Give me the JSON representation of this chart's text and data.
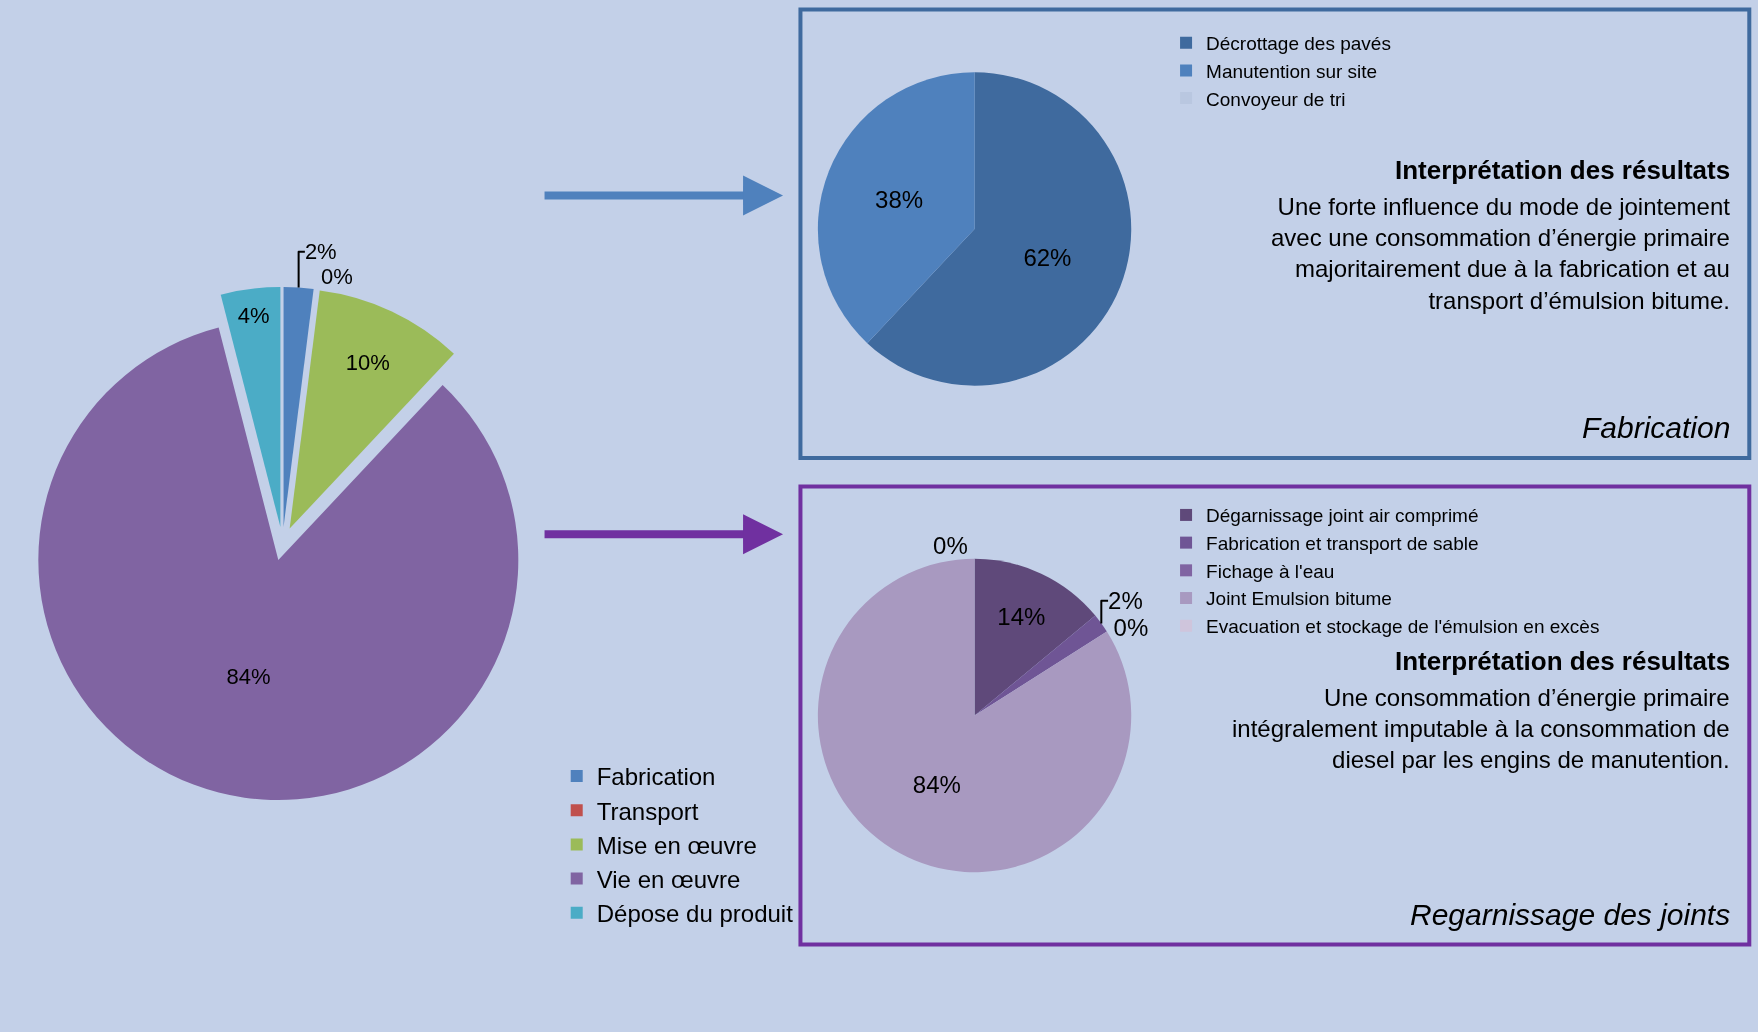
{
  "chart_data": [
    {
      "type": "pie",
      "categories": [
        "Fabrication",
        "Transport",
        "Mise en œuvre",
        "Vie en œuvre",
        "Dépose du produit"
      ],
      "values": [
        2,
        0,
        10,
        84,
        4
      ],
      "colors": [
        "#4f81bd",
        "#c0504d",
        "#9bbb59",
        "#8064a2",
        "#4bacc6"
      ],
      "value_labels": [
        "2%",
        "0%",
        "10%",
        "84%",
        "4%"
      ],
      "legend": "bottom right"
    },
    {
      "type": "pie",
      "title": "Fabrication",
      "categories": [
        "Décrottage des pavés",
        "Manutention sur site",
        "Convoyeur de tri"
      ],
      "values": [
        62,
        38,
        0
      ],
      "colors": [
        "#3f6a9e",
        "#4f81bd",
        "#b9c7e0"
      ],
      "value_labels": [
        "62%",
        "38%",
        null
      ],
      "legend": "top right",
      "annotations": [
        "Interprétation des résultats",
        "Une forte influence du mode de jointement avec une consommation d’énergie primaire majoritairement due à la fabrication et au transport d’émulsion bitume."
      ]
    },
    {
      "type": "pie",
      "title": "Regarnissage des joints",
      "categories": [
        "Dégarnissage joint air comprimé",
        "Fabrication et transport de sable",
        "Fichage à l'eau",
        "Joint Emulsion bitume",
        "Evacuation et stockage de l'émulsion en excès"
      ],
      "values": [
        14,
        2,
        0,
        84,
        0
      ],
      "colors": [
        "#5f497a",
        "#6f5595",
        "#8064a2",
        "#a899c0",
        "#cfc5dc"
      ],
      "value_labels": [
        "14%",
        "2%",
        "0%",
        "84%",
        "0%"
      ],
      "legend": "top right",
      "annotations": [
        "Interprétation des résultats",
        "Une consommation d’énergie primaire intégralement imputable à la consommation de diesel par les engins de manutention."
      ]
    }
  ]
}
